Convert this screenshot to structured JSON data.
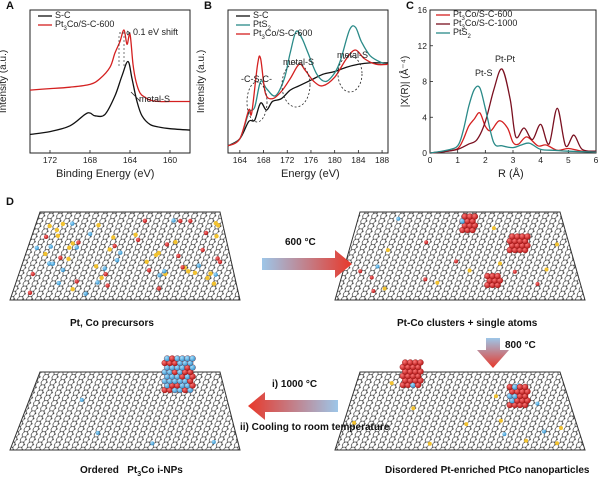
{
  "panels": {
    "A": "A",
    "B": "B",
    "C": "C",
    "D": "D"
  },
  "chart_data": [
    {
      "type": "line",
      "panel": "A",
      "xlabel": "Binding Energy (eV)",
      "ylabel": "Intensity (a.u.)",
      "xlim": [
        174,
        158
      ],
      "xticks": [
        "172",
        "168",
        "164",
        "160"
      ],
      "series": [
        {
          "name": "S-C",
          "color": "#111111",
          "x": [
            174,
            172,
            170,
            168.5,
            168,
            167.5,
            166.5,
            165.5,
            164.8,
            164.2,
            163.8,
            163.3,
            162.8,
            162,
            161,
            160,
            158
          ],
          "y": [
            0.13,
            0.15,
            0.19,
            0.27,
            0.28,
            0.26,
            0.27,
            0.4,
            0.54,
            0.64,
            0.52,
            0.36,
            0.26,
            0.2,
            0.18,
            0.17,
            0.16
          ]
        },
        {
          "name": "Pt3Co/S-C-600",
          "color": "#d42020",
          "x": [
            174,
            172,
            170,
            168,
            167,
            166,
            165.5,
            165,
            164.6,
            164.3,
            164,
            163.7,
            163.4,
            163,
            162.5,
            162,
            161,
            160,
            158
          ],
          "y": [
            0.44,
            0.45,
            0.46,
            0.48,
            0.52,
            0.6,
            0.7,
            0.78,
            0.86,
            0.76,
            0.83,
            0.62,
            0.5,
            0.42,
            0.39,
            0.37,
            0.36,
            0.36,
            0.36
          ]
        }
      ],
      "annotations": [
        "0.1 eV shift",
        "metal-S"
      ],
      "legend": [
        "S-C",
        "Pt3Co/S-C-600"
      ]
    },
    {
      "type": "line",
      "panel": "B",
      "xlabel": "Energy (eV)",
      "ylabel": "Intensity (a.u.)",
      "xlim": [
        162,
        189
      ],
      "xticks": [
        "164",
        "168",
        "172",
        "176",
        "180",
        "184",
        "188"
      ],
      "series": [
        {
          "name": "S-C",
          "color": "#111111",
          "x": [
            162,
            164,
            165.5,
            166.5,
            167.5,
            168.5,
            169.5,
            171,
            172.5,
            174,
            176,
            178,
            180,
            182,
            184,
            186,
            188,
            189
          ],
          "y": [
            0.05,
            0.1,
            0.22,
            0.23,
            0.35,
            0.3,
            0.36,
            0.38,
            0.44,
            0.47,
            0.51,
            0.55,
            0.57,
            0.6,
            0.62,
            0.63,
            0.63,
            0.63
          ]
        },
        {
          "name": "PtS2",
          "color": "#2a8a88",
          "x": [
            162,
            164,
            165.5,
            166.5,
            167.5,
            168.5,
            170,
            171.5,
            172.5,
            173.5,
            174.5,
            175.5,
            177,
            178.5,
            180,
            181,
            182.5,
            183.5,
            184.5,
            186,
            188,
            189
          ],
          "y": [
            0.05,
            0.1,
            0.28,
            0.32,
            0.5,
            0.45,
            0.4,
            0.52,
            0.7,
            0.85,
            0.8,
            0.7,
            0.55,
            0.5,
            0.56,
            0.65,
            0.86,
            0.88,
            0.78,
            0.68,
            0.63,
            0.62
          ]
        },
        {
          "name": "Pt3Co/S-C-600",
          "color": "#d42020",
          "x": [
            162,
            164,
            165.5,
            166,
            167,
            167.5,
            168.3,
            169.5,
            171,
            172.5,
            174,
            175,
            176.5,
            178,
            180,
            182,
            183.5,
            185,
            187,
            189
          ],
          "y": [
            0.05,
            0.1,
            0.3,
            0.28,
            0.62,
            0.66,
            0.42,
            0.38,
            0.43,
            0.52,
            0.62,
            0.58,
            0.5,
            0.47,
            0.53,
            0.66,
            0.72,
            0.66,
            0.62,
            0.62
          ]
        }
      ],
      "annotations": [
        "-C-S-C-",
        "metal-S",
        "metal-S"
      ],
      "legend": [
        "S-C",
        "PtS2",
        "Pt3Co/S-C-600"
      ]
    },
    {
      "type": "line",
      "panel": "C",
      "xlabel": "R (Å)",
      "ylabel": "|X(R)| (Å⁻⁴)",
      "xlim": [
        0,
        6
      ],
      "ylim": [
        0,
        16
      ],
      "xticks": [
        "0",
        "1",
        "2",
        "3",
        "4",
        "5",
        "6"
      ],
      "yticks": [
        "0",
        "4",
        "8",
        "12",
        "16"
      ],
      "series": [
        {
          "name": "Pt3Co/S-C-600",
          "color": "#d42020",
          "x": [
            0,
            0.6,
            1.0,
            1.2,
            1.4,
            1.6,
            1.8,
            2.0,
            2.2,
            2.5,
            2.8,
            3.0,
            3.2,
            3.5,
            3.9,
            4.2,
            4.6,
            5.0,
            5.5,
            6.0
          ],
          "y": [
            0,
            0.2,
            0.5,
            1.5,
            3.0,
            3.8,
            4.5,
            3.0,
            2.5,
            3.6,
            2.8,
            1.2,
            1.0,
            1.8,
            0.8,
            0.9,
            0.3,
            0.5,
            0.2,
            0.1
          ]
        },
        {
          "name": "Pt3Co/S-C-1000",
          "color": "#7a1020",
          "x": [
            0,
            0.6,
            1.0,
            1.4,
            1.7,
            2.0,
            2.3,
            2.6,
            2.9,
            3.1,
            3.4,
            3.7,
            4.0,
            4.3,
            4.6,
            4.9,
            5.2,
            5.5,
            6.0
          ],
          "y": [
            0,
            0.2,
            0.4,
            1.0,
            1.5,
            3.5,
            7.0,
            9.4,
            6.0,
            1.8,
            2.8,
            1.5,
            3.2,
            1.0,
            5.0,
            0.8,
            2.0,
            0.4,
            0.2
          ]
        },
        {
          "name": "PtS2",
          "color": "#2a8a88",
          "x": [
            0,
            0.6,
            1.0,
            1.2,
            1.4,
            1.6,
            1.8,
            2.0,
            2.3,
            2.6,
            3.0,
            3.3,
            3.6,
            4.0,
            4.5,
            5.0,
            6.0
          ],
          "y": [
            0,
            0.3,
            0.8,
            2.5,
            5.2,
            7.1,
            7.3,
            5.0,
            1.2,
            0.8,
            0.6,
            0.9,
            1.1,
            0.4,
            0.3,
            0.2,
            0.1
          ]
        }
      ],
      "annotations": [
        "Pt-S",
        "Pt-Pt"
      ],
      "legend": [
        "Pt3Co/S-C-600",
        "Pt3Co/S-C-1000",
        "PtS2"
      ]
    }
  ],
  "schematic": {
    "stage1": "Pt, Co precursors",
    "stage2": "Pt-Co clusters + single atoms",
    "stage3": "Disordered Pt-enriched PtCo nanoparticles",
    "stage4_prefix": "Ordered",
    "stage4_formula": "Pt",
    "stage4_sub": "3",
    "stage4_suffix": "Co i-NPs",
    "step1": "600 °C",
    "step2": "800 °C",
    "step3a": "i) 1000 °C",
    "step3b": "ii) Cooling to room temperature"
  },
  "text": {
    "a_annot_shift": "0.1 eV shift",
    "a_annot_metal": "metal-S",
    "b_annot_csc": "-C-S-C-",
    "b_annot_metal1": "metal-S",
    "b_annot_metal2": "metal-S",
    "c_annot_pts": "Pt-S",
    "c_annot_ptpt": "Pt-Pt",
    "a_ylabel": "Intensity (a.u.)",
    "a_xlabel": "Binding Energy (eV)",
    "b_ylabel": "Intensity (a.u.)",
    "b_xlabel": "Energy (eV)",
    "c_ylabel": "|X(R)| (Å⁻⁴)",
    "c_xlabel": "R (Å)"
  },
  "legend": {
    "a1": "S-C",
    "a2_main": "Pt",
    "a2_sub": "3",
    "a2_rest": "Co/S-C-600",
    "b1": "S-C",
    "b2_main": "PtS",
    "b2_sub": "2",
    "b3_main": "Pt",
    "b3_sub": "3",
    "b3_rest": "Co/S-C-600",
    "c1_main": "Pt",
    "c1_sub": "3",
    "c1_rest": "Co/S-C-600",
    "c2_main": "Pt",
    "c2_sub": "3",
    "c2_rest": "Co/S-C-1000",
    "c3_main": "PtS",
    "c3_sub": "2"
  }
}
